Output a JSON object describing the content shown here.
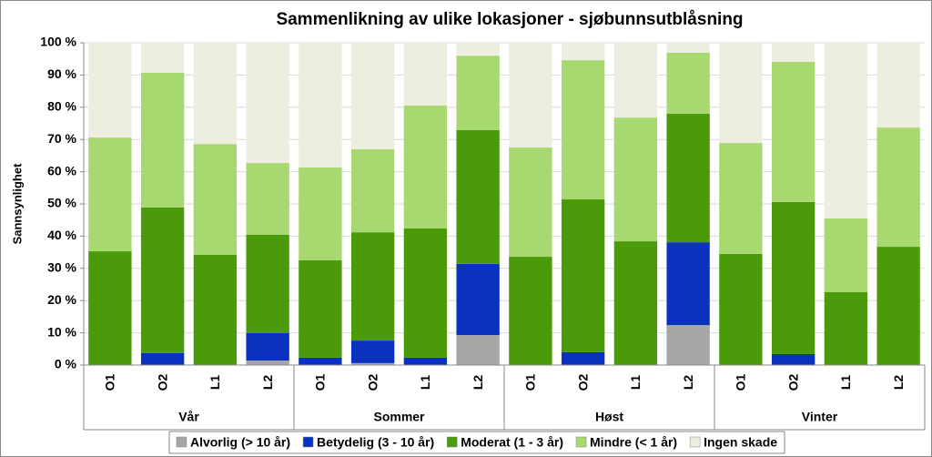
{
  "chart_data": {
    "type": "stacked_bar",
    "title": "Sammenlikning av ulike lokasjoner - sjøbunnsutblåsning",
    "y_label": "Sannsynlighet",
    "categories": [
      "O1",
      "O2",
      "L1",
      "L2",
      "O1",
      "O2",
      "L1",
      "L2",
      "O1",
      "O2",
      "L1",
      "L2",
      "O1",
      "O2",
      "L1",
      "L2"
    ],
    "groups": [
      "Vår",
      "Sommer",
      "Høst",
      "Vinter"
    ],
    "series": [
      {
        "name": "Alvorlig (> 10 år)",
        "color": "#a6a6a6",
        "values": [
          0,
          0,
          0,
          1.4,
          0,
          0.6,
          0,
          9.3,
          0,
          0,
          0,
          12.4,
          0,
          0,
          0,
          0
        ]
      },
      {
        "name": "Betydelig (3 - 10 år)",
        "color": "#0a32be",
        "values": [
          0,
          3.7,
          0,
          8.5,
          2.3,
          7.0,
          2.3,
          22.1,
          0,
          4.0,
          0,
          25.7,
          0,
          3.4,
          0,
          0
        ]
      },
      {
        "name": "Moderat (1 - 3 år)",
        "color": "#4a9a0a",
        "values": [
          35.3,
          45.2,
          34.2,
          30.5,
          30.2,
          33.6,
          40.1,
          41.5,
          33.6,
          47.4,
          38.4,
          39.9,
          34.5,
          47.2,
          22.6,
          36.7
        ]
      },
      {
        "name": "Mindre (< 1 år)",
        "color": "#a8d870",
        "values": [
          35.3,
          41.8,
          34.4,
          22.3,
          28.8,
          25.8,
          38.1,
          23.1,
          33.9,
          43.2,
          38.4,
          18.9,
          34.4,
          43.5,
          22.9,
          37.0
        ]
      },
      {
        "name": "Ingen skade",
        "color": "#eeeee0",
        "values": [
          29.4,
          9.3,
          31.4,
          37.3,
          38.7,
          33.0,
          19.5,
          4.0,
          32.5,
          5.4,
          23.2,
          3.1,
          31.1,
          5.9,
          54.5,
          26.3
        ]
      }
    ],
    "ylim": [
      0,
      100
    ],
    "yticks": [
      {
        "value": 0,
        "label": "0 %"
      },
      {
        "value": 10,
        "label": "10 %"
      },
      {
        "value": 20,
        "label": "20 %"
      },
      {
        "value": 30,
        "label": "30 %"
      },
      {
        "value": 40,
        "label": "40 %"
      },
      {
        "value": 50,
        "label": "50 %"
      },
      {
        "value": 60,
        "label": "60 %"
      },
      {
        "value": 70,
        "label": "70 %"
      },
      {
        "value": 80,
        "label": "80 %"
      },
      {
        "value": 90,
        "label": "90 %"
      },
      {
        "value": 100,
        "label": "100 %"
      }
    ],
    "grid": true,
    "legend": "bottom"
  }
}
